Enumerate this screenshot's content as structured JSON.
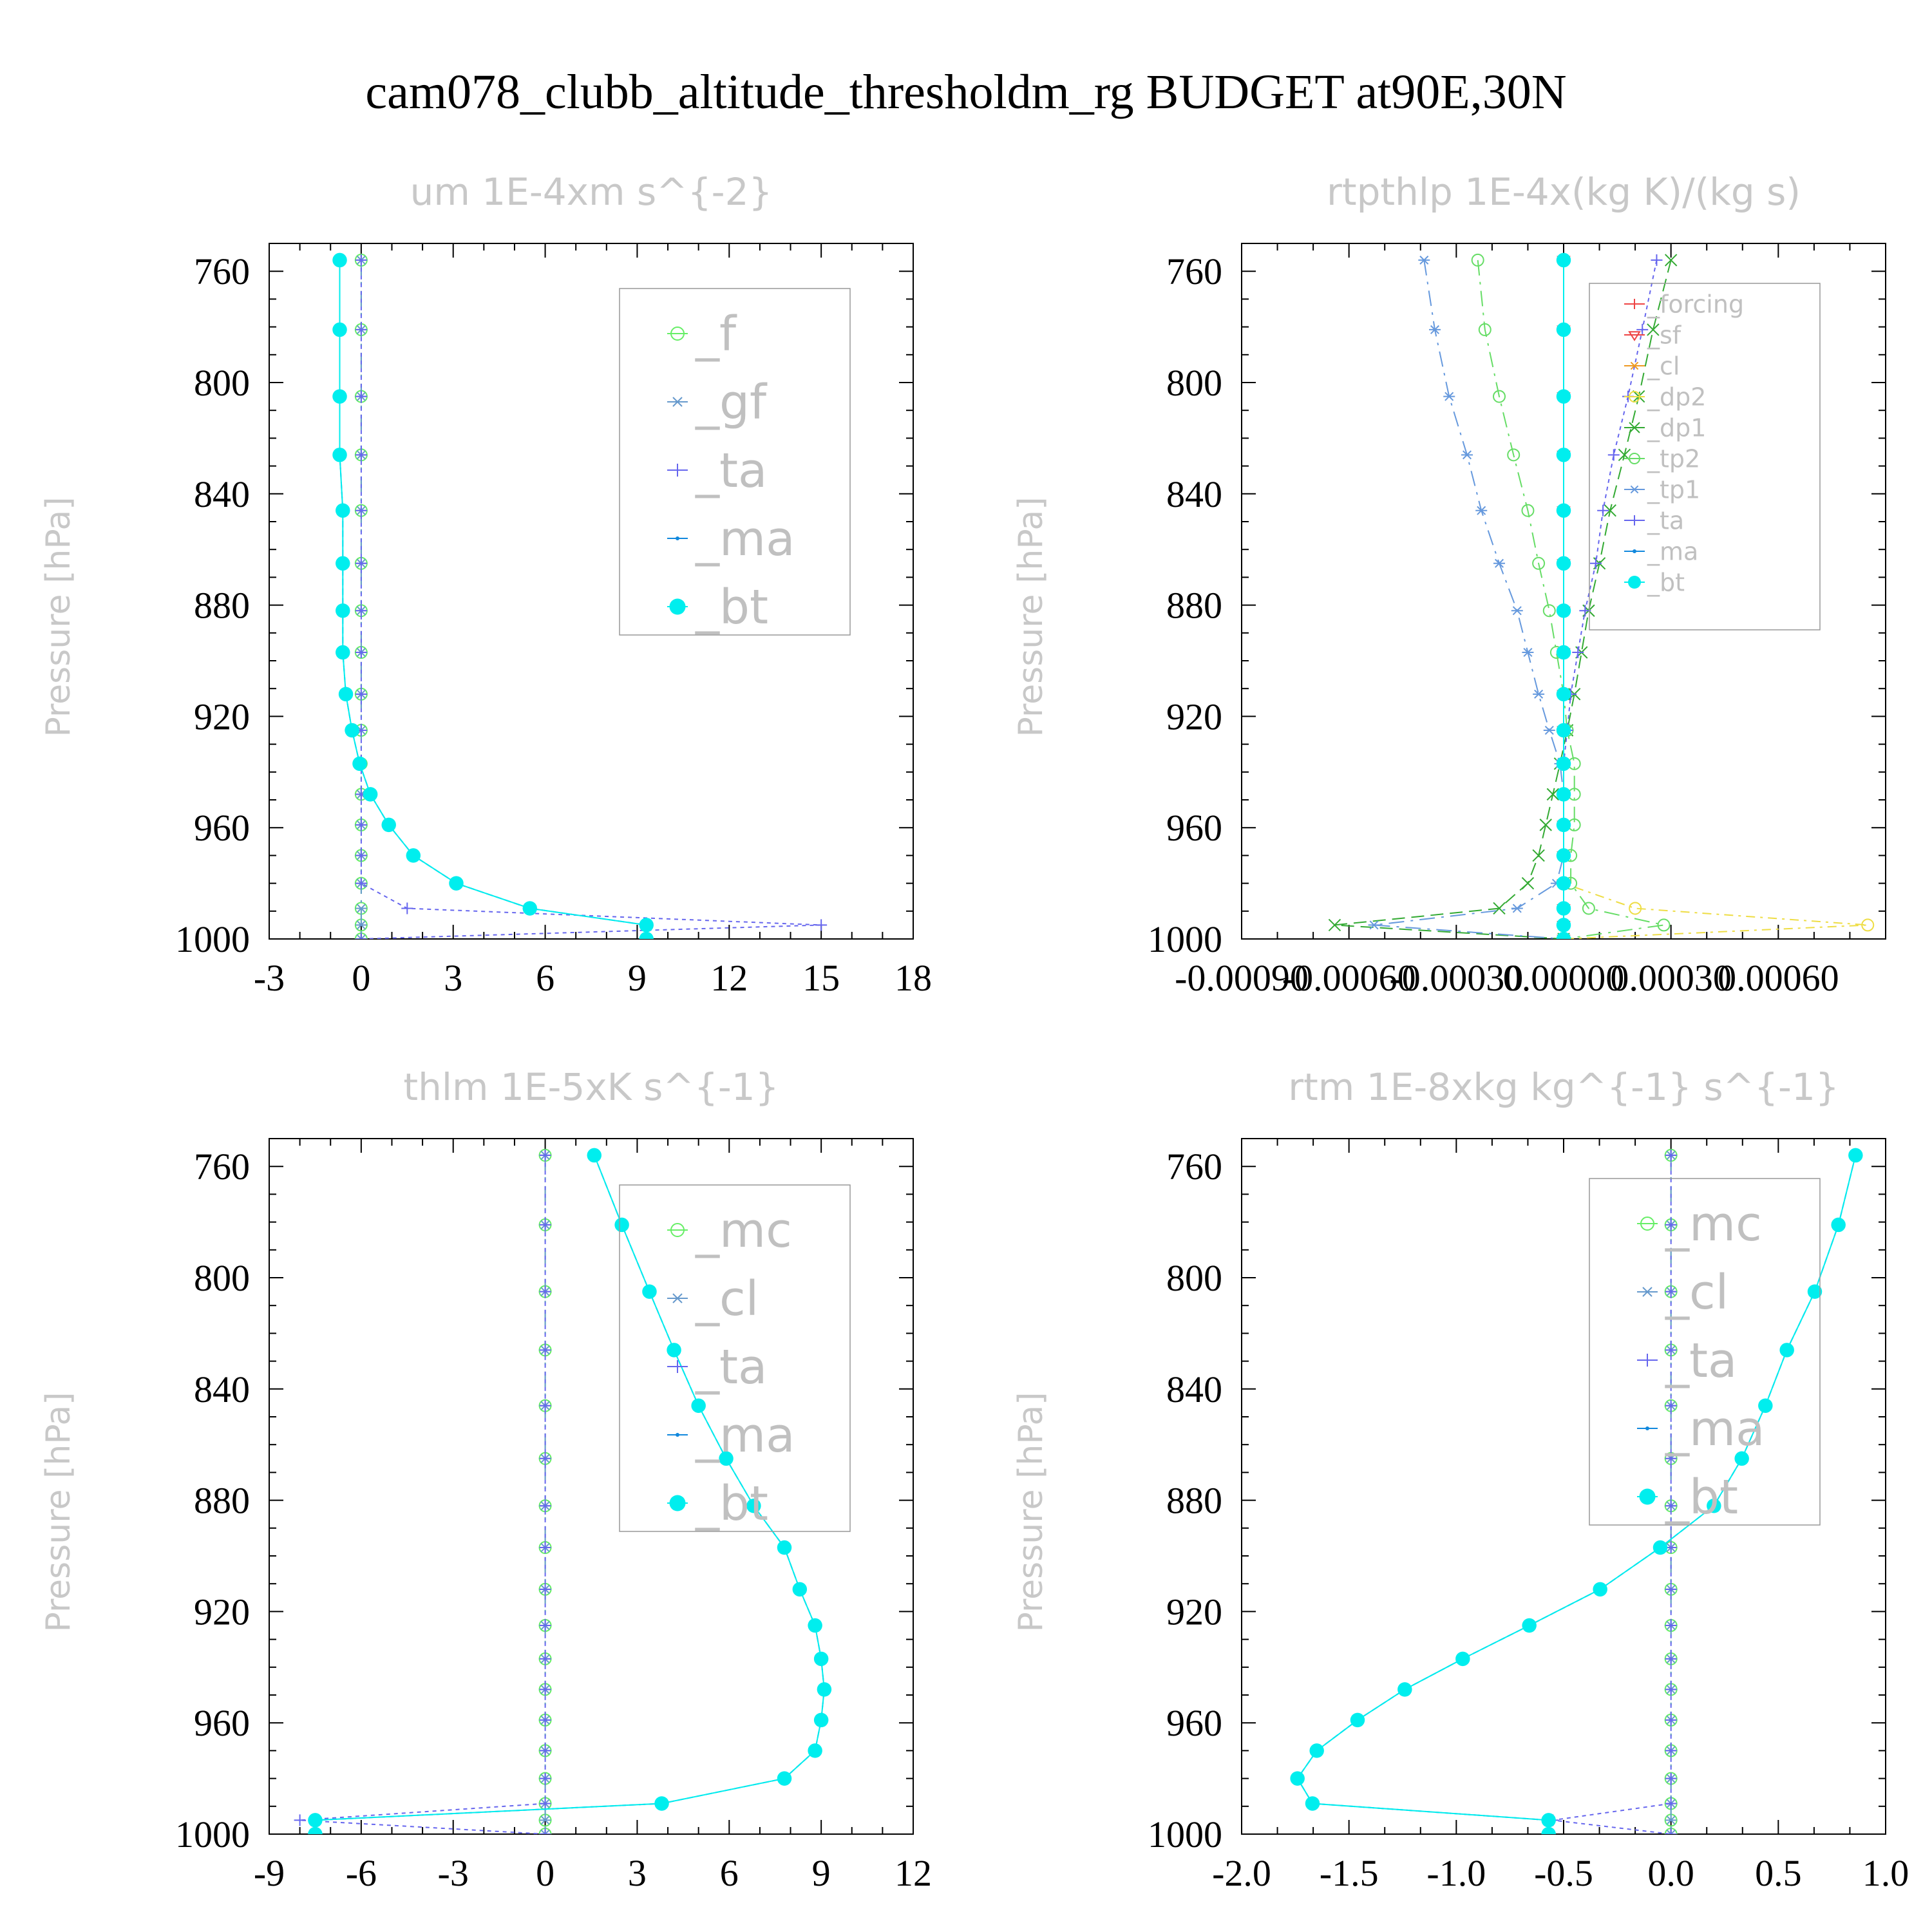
{
  "figure_title": "cam078_clubb_altitude_thresholdm_rg  BUDGET at90E,30N",
  "y_axis_label": "Pressure [hPa]",
  "chart_data": [
    {
      "type": "line",
      "title": "um  1E-4xm s^{-2}",
      "ylabel": "Pressure [hPa]",
      "xlim": [
        -3,
        18
      ],
      "ylim": [
        1000,
        750
      ],
      "xticks": [
        -3,
        0,
        3,
        6,
        9,
        12,
        15,
        18
      ],
      "xtick_labels": [
        "-3",
        "0",
        "3",
        "6",
        "9",
        "12",
        "15",
        "18"
      ],
      "yticks": [
        760,
        800,
        840,
        880,
        920,
        960,
        1000
      ],
      "legend_position": "top-right",
      "grid": false,
      "pressure": [
        756,
        781,
        805,
        826,
        846,
        865,
        882,
        897,
        912,
        925,
        937,
        948,
        959,
        970,
        980,
        989,
        995,
        1000
      ],
      "series": [
        {
          "name": "_f",
          "color": "#66ee66",
          "values": [
            0,
            0,
            0,
            0,
            0,
            0,
            0,
            0,
            0,
            0,
            0,
            0,
            0,
            0,
            0,
            0,
            0,
            0
          ]
        },
        {
          "name": "_gf",
          "color": "#6699cc",
          "values": [
            0,
            0,
            0,
            0,
            0,
            0,
            0,
            0,
            0,
            0,
            0,
            0,
            0,
            0,
            0,
            0,
            0,
            0
          ]
        },
        {
          "name": "_ta",
          "color": "#6666ee",
          "values": [
            0,
            0,
            0,
            0,
            0,
            0,
            0,
            0,
            0,
            0,
            0,
            0,
            0,
            0,
            0,
            1.5,
            15,
            0
          ]
        },
        {
          "name": "_ma",
          "color": "#1188dd",
          "values": [
            -0.7,
            -0.7,
            -0.7,
            -0.7,
            -0.6,
            -0.6,
            -0.6,
            -0.6,
            -0.5,
            -0.3,
            -0.05,
            0.3,
            0.9,
            1.7,
            3.1,
            5.5,
            9.3,
            9.3
          ]
        },
        {
          "name": "_bt",
          "color": "#00eeee",
          "values": [
            -0.7,
            -0.7,
            -0.7,
            -0.7,
            -0.6,
            -0.6,
            -0.6,
            -0.6,
            -0.5,
            -0.3,
            -0.05,
            0.3,
            0.9,
            1.7,
            3.1,
            5.5,
            9.3,
            9.3
          ]
        }
      ]
    },
    {
      "type": "line",
      "title": "rtpthlp  1E-4x(kg K)/(kg s)",
      "ylabel": "Pressure [hPa]",
      "xlim": [
        -0.0009,
        0.0009
      ],
      "ylim": [
        1000,
        750
      ],
      "xticks": [
        -0.0009,
        -0.0006,
        -0.0003,
        0.0,
        0.0003,
        0.0006
      ],
      "xtick_labels": [
        "-0.00090",
        "-0.00060",
        "-0.00030",
        "0.00000",
        "0.00030",
        "0.00060"
      ],
      "yticks": [
        760,
        800,
        840,
        880,
        920,
        960,
        1000
      ],
      "legend_position": "top-right",
      "grid": false,
      "pressure": [
        756,
        781,
        805,
        826,
        846,
        865,
        882,
        897,
        912,
        925,
        937,
        948,
        959,
        970,
        980,
        989,
        995,
        1000
      ],
      "series": [
        {
          "name": "_forcing",
          "color": "#ee4444",
          "values": [
            0,
            0,
            0,
            0,
            0,
            0,
            0,
            0,
            0,
            0,
            0,
            0,
            0,
            0,
            0,
            0,
            0,
            0
          ]
        },
        {
          "name": "_sf",
          "color": "#ee4444",
          "values": [
            0,
            0,
            0,
            0,
            0,
            0,
            0,
            0,
            0,
            0,
            0,
            0,
            0,
            0,
            0,
            0,
            0,
            0
          ]
        },
        {
          "name": "_cl",
          "color": "#ee9922",
          "values": [
            0,
            0,
            0,
            0,
            0,
            0,
            0,
            0,
            0,
            0,
            0,
            0,
            0,
            0,
            0,
            0,
            0,
            0
          ]
        },
        {
          "name": "_dp2",
          "color": "#eedd44",
          "values": [
            0,
            0,
            0,
            0,
            0,
            0,
            0,
            0,
            0,
            0,
            0,
            0,
            0,
            0,
            0,
            0.0002,
            0.00085,
            0
          ]
        },
        {
          "name": "_dp1",
          "color": "#33aa33",
          "values": [
            0.0003,
            0.00025,
            0.00021,
            0.00017,
            0.00013,
            0.0001,
            7e-05,
            5e-05,
            3e-05,
            1e-05,
            -1e-05,
            -3e-05,
            -5e-05,
            -7e-05,
            -0.0001,
            -0.00018,
            -0.00064,
            0
          ]
        },
        {
          "name": "_tp2",
          "color": "#66dd66",
          "values": [
            -0.00024,
            -0.00022,
            -0.00018,
            -0.00014,
            -0.0001,
            -7e-05,
            -4e-05,
            -2e-05,
            0,
            1e-05,
            3e-05,
            3e-05,
            3e-05,
            2e-05,
            2e-05,
            7e-05,
            0.00028,
            0
          ]
        },
        {
          "name": "_tp1",
          "color": "#6699dd",
          "values": [
            -0.00039,
            -0.00036,
            -0.00032,
            -0.00027,
            -0.00023,
            -0.00018,
            -0.00013,
            -0.0001,
            -7e-05,
            -4e-05,
            -1e-05,
            0,
            0,
            0,
            -2e-05,
            -0.00013,
            -0.00053,
            0
          ]
        },
        {
          "name": "_ta",
          "color": "#6666ee",
          "values": [
            0.00026,
            0.00022,
            0.00018,
            0.00014,
            0.00011,
            9e-05,
            6e-05,
            4e-05,
            2e-05,
            1e-05,
            0,
            0,
            0,
            0,
            0,
            0,
            0,
            0
          ]
        },
        {
          "name": "_ma",
          "color": "#1188dd",
          "values": [
            0,
            0,
            0,
            0,
            0,
            0,
            0,
            0,
            0,
            0,
            0,
            0,
            0,
            0,
            0,
            0,
            0,
            0
          ]
        },
        {
          "name": "_bt",
          "color": "#00eeee",
          "values": [
            0,
            0,
            0,
            0,
            0,
            0,
            0,
            0,
            0,
            0,
            0,
            0,
            0,
            0,
            0,
            0,
            0,
            0
          ]
        }
      ]
    },
    {
      "type": "line",
      "title": "thlm  1E-5xK s^{-1}",
      "ylabel": "Pressure [hPa]",
      "xlim": [
        -9,
        12
      ],
      "ylim": [
        1000,
        750
      ],
      "xticks": [
        -9,
        -6,
        -3,
        0,
        3,
        6,
        9,
        12
      ],
      "xtick_labels": [
        "-9",
        "-6",
        "-3",
        "0",
        "3",
        "6",
        "9",
        "12"
      ],
      "yticks": [
        760,
        800,
        840,
        880,
        920,
        960,
        1000
      ],
      "legend_position": "top-right",
      "grid": false,
      "pressure": [
        756,
        781,
        805,
        826,
        846,
        865,
        882,
        897,
        912,
        925,
        937,
        948,
        959,
        970,
        980,
        989,
        995,
        1000
      ],
      "series": [
        {
          "name": "_mc",
          "color": "#66ee66",
          "values": [
            0,
            0,
            0,
            0,
            0,
            0,
            0,
            0,
            0,
            0,
            0,
            0,
            0,
            0,
            0,
            0,
            0,
            0
          ]
        },
        {
          "name": "_cl",
          "color": "#6699cc",
          "values": [
            0,
            0,
            0,
            0,
            0,
            0,
            0,
            0,
            0,
            0,
            0,
            0,
            0,
            0,
            0,
            0,
            0,
            0
          ]
        },
        {
          "name": "_ta",
          "color": "#6666ee",
          "values": [
            0,
            0,
            0,
            0,
            0,
            0,
            0,
            0,
            0,
            0,
            0,
            0,
            0,
            0,
            0,
            0,
            -8,
            0
          ]
        },
        {
          "name": "_ma",
          "color": "#1188dd",
          "values": [
            1.6,
            2.5,
            3.4,
            4.2,
            5.0,
            5.9,
            6.8,
            7.8,
            8.3,
            8.8,
            9.0,
            9.1,
            9.0,
            8.8,
            7.8,
            3.8,
            -7.5,
            -7.5
          ]
        },
        {
          "name": "_bt",
          "color": "#00eeee",
          "values": [
            1.6,
            2.5,
            3.4,
            4.2,
            5.0,
            5.9,
            6.8,
            7.8,
            8.3,
            8.8,
            9.0,
            9.1,
            9.0,
            8.8,
            7.8,
            3.8,
            -7.5,
            -7.5
          ]
        }
      ]
    },
    {
      "type": "line",
      "title": "rtm  1E-8xkg kg^{-1} s^{-1}",
      "ylabel": "Pressure [hPa]",
      "xlim": [
        -2.0,
        1.0
      ],
      "ylim": [
        1000,
        750
      ],
      "xticks": [
        -2.0,
        -1.5,
        -1.0,
        -0.5,
        0.0,
        0.5,
        1.0
      ],
      "xtick_labels": [
        "-2.0",
        "-1.5",
        "-1.0",
        "-0.5",
        "0.0",
        "0.5",
        "1.0"
      ],
      "yticks": [
        760,
        800,
        840,
        880,
        920,
        960,
        1000
      ],
      "legend_position": "top-right",
      "grid": false,
      "pressure": [
        756,
        781,
        805,
        826,
        846,
        865,
        882,
        897,
        912,
        925,
        937,
        948,
        959,
        970,
        980,
        989,
        995,
        1000
      ],
      "series": [
        {
          "name": "_mc",
          "color": "#66ee66",
          "values": [
            0,
            0,
            0,
            0,
            0,
            0,
            0,
            0,
            0,
            0,
            0,
            0,
            0,
            0,
            0,
            0,
            0,
            0
          ]
        },
        {
          "name": "_cl",
          "color": "#6699cc",
          "values": [
            0,
            0,
            0,
            0,
            0,
            0,
            0,
            0,
            0,
            0,
            0,
            0,
            0,
            0,
            0,
            0,
            0,
            0
          ]
        },
        {
          "name": "_ta",
          "color": "#6666ee",
          "values": [
            0,
            0,
            0,
            0,
            0,
            0,
            0,
            0,
            0,
            0,
            0,
            0,
            0,
            0,
            0,
            0,
            -0.55,
            0
          ]
        },
        {
          "name": "_ma",
          "color": "#1188dd",
          "values": [
            0.86,
            0.78,
            0.67,
            0.54,
            0.44,
            0.33,
            0.2,
            -0.05,
            -0.33,
            -0.66,
            -0.97,
            -1.24,
            -1.46,
            -1.65,
            -1.74,
            -1.67,
            -0.57,
            -0.57
          ]
        },
        {
          "name": "_bt",
          "color": "#00eeee",
          "values": [
            0.86,
            0.78,
            0.67,
            0.54,
            0.44,
            0.33,
            0.2,
            -0.05,
            -0.33,
            -0.66,
            -0.97,
            -1.24,
            -1.46,
            -1.65,
            -1.74,
            -1.67,
            -0.57,
            -0.57
          ]
        }
      ]
    }
  ]
}
